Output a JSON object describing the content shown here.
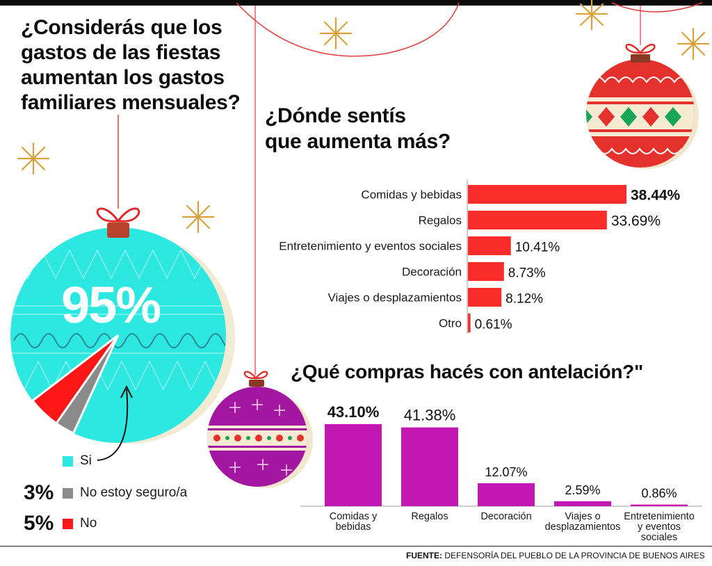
{
  "colors": {
    "si": "#2de8e0",
    "no_seguro": "#8a8a8a",
    "no": "#ff1616",
    "hbar": "#fa2b2b",
    "vbar": "#c317b4",
    "gold": "#d8a13a"
  },
  "question1": "¿Considerás que los\ngastos de las fiestas\naumentan los gastos\nfamiliares mensuales?",
  "question2": "¿Dónde sentís\nque aumenta más?",
  "question3": "¿Qué compras hacés con antelación?\"",
  "source": {
    "label": "FUENTE:",
    "text": "DEFENSORÍA DEL PUEBLO DE LA PROVINCIA DE BUENOS AIRES"
  },
  "chart_data": [
    {
      "type": "pie",
      "title": "¿Considerás que los gastos de las fiestas aumentan los gastos familiares mensuales?",
      "center_label": "95%",
      "slices": [
        {
          "label": "Si",
          "value": 95,
          "display": "",
          "color": "#2de8e0"
        },
        {
          "label": "No estoy seguro/a",
          "value": 3,
          "display": "3%",
          "color": "#8a8a8a"
        },
        {
          "label": "No",
          "value": 5,
          "display": "5%",
          "color": "#ff1616"
        }
      ]
    },
    {
      "type": "bar",
      "orientation": "horizontal",
      "title": "¿Dónde sentís que aumenta más?",
      "categories": [
        "Comidas y bebidas",
        "Regalos",
        "Entretenimiento y eventos sociales",
        "Decoración",
        "Viajes o desplazamientos",
        "Otro"
      ],
      "values": [
        38.44,
        33.69,
        10.41,
        8.73,
        8.12,
        0.61
      ],
      "labels": [
        "38.44%",
        "33.69%",
        "10.41%",
        "8.73%",
        "8.12%",
        "0.61%"
      ],
      "highlight": [
        true,
        false,
        false,
        false,
        false,
        false
      ],
      "color": "#fa2b2b"
    },
    {
      "type": "bar",
      "orientation": "vertical",
      "title": "¿Qué compras hacés con antelación?\"",
      "categories": [
        "Comidas y\nbebidas",
        "Regalos",
        "Decoración",
        "Viajes o\ndesplazamientos",
        "Entretenimiento\ny eventos\nsociales"
      ],
      "values": [
        43.1,
        41.38,
        12.07,
        2.59,
        0.86
      ],
      "labels": [
        "43.10%",
        "41.38%",
        "12.07%",
        "2.59%",
        "0.86%"
      ],
      "highlight": [
        true,
        false,
        false,
        false,
        false
      ],
      "color": "#c317b4"
    }
  ]
}
